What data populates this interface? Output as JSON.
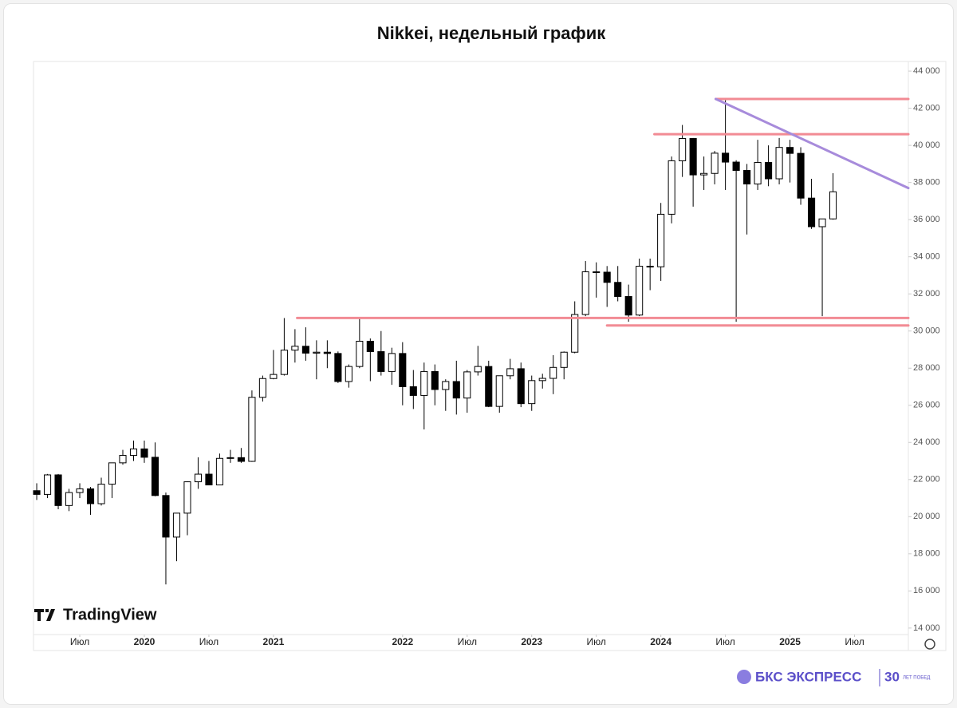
{
  "chart_data": {
    "type": "candlestick",
    "title": "Nikkei, недельный график",
    "watermark": "TradingView",
    "brand": "БКС ЭКСПРЕСС",
    "brand_badge": "30",
    "brand_badge_note": "ЛЕТ ПОБЕД",
    "up_color": "#ffffff",
    "down_color": "#000000",
    "wick_color": "#000000",
    "x": [
      0,
      1,
      2,
      3,
      4,
      5,
      6,
      7,
      8,
      9,
      10,
      11,
      12,
      13,
      14,
      15,
      16,
      17,
      18,
      19,
      20,
      21,
      22,
      23,
      24,
      25,
      26,
      27,
      28,
      29,
      30,
      31,
      32,
      33,
      34,
      35,
      36,
      37,
      38,
      39,
      40,
      41,
      42,
      43,
      44,
      45,
      46,
      47,
      48,
      49,
      50,
      51,
      52,
      53,
      54,
      55,
      56,
      57,
      58,
      59,
      60,
      61,
      62,
      63,
      64,
      65,
      66,
      67,
      68,
      69,
      70,
      71,
      72,
      73,
      74
    ],
    "open": [
      21400,
      21200,
      22250,
      20600,
      21300,
      21500,
      20700,
      21750,
      22900,
      23300,
      23650,
      23200,
      21140,
      18900,
      20190,
      21880,
      22290,
      21710,
      23140,
      23180,
      22980,
      26430,
      27440,
      27660,
      28970,
      29180,
      28810,
      28860,
      28790,
      27280,
      28090,
      29450,
      28890,
      27820,
      28790,
      27000,
      26530,
      27820,
      26850,
      27280,
      26390,
      27800,
      28090,
      25940,
      27590,
      27970,
      26090,
      27330,
      27450,
      28040,
      28860,
      30890,
      33190,
      33170,
      32620,
      31860,
      30860,
      33490,
      33460,
      36290,
      39170,
      40370,
      38410,
      38490,
      39580,
      39100,
      38650,
      37920,
      39080,
      38200,
      39890,
      39570,
      37160,
      35620,
      36040
    ],
    "high": [
      21800,
      22300,
      22300,
      21500,
      21800,
      21600,
      22100,
      22900,
      23600,
      24100,
      24100,
      24000,
      21300,
      20200,
      21900,
      23200,
      23000,
      23400,
      23600,
      23700,
      26800,
      27600,
      28980,
      30700,
      30100,
      30200,
      29500,
      29500,
      28900,
      28200,
      30670,
      29600,
      30000,
      29100,
      29400,
      27900,
      28300,
      28200,
      27400,
      28400,
      27900,
      29200,
      28400,
      27600,
      28500,
      28300,
      27600,
      27700,
      28700,
      28900,
      31600,
      33770,
      33700,
      33500,
      33500,
      32500,
      33900,
      33900,
      36900,
      39400,
      41100,
      40400,
      39400,
      39700,
      42430,
      39200,
      39000,
      40300,
      40000,
      40400,
      40300,
      39900,
      38200,
      36000,
      38500
    ],
    "low": [
      20900,
      21000,
      20400,
      20300,
      21000,
      20100,
      20600,
      21000,
      22800,
      23000,
      22900,
      21100,
      16350,
      17600,
      19000,
      21500,
      21700,
      21700,
      22900,
      22900,
      22950,
      26200,
      27400,
      27600,
      28300,
      28400,
      27400,
      28000,
      27200,
      26950,
      28000,
      27300,
      27600,
      27100,
      26000,
      25800,
      24700,
      26000,
      25700,
      25500,
      25600,
      27600,
      25900,
      25600,
      27400,
      25900,
      25700,
      26900,
      26600,
      27400,
      28800,
      30800,
      31800,
      31300,
      31600,
      30500,
      30800,
      32200,
      32700,
      35800,
      38300,
      36700,
      37600,
      37900,
      37600,
      30500,
      35200,
      37600,
      37800,
      37900,
      38000,
      36800,
      35500,
      30800,
      36000
    ],
    "close": [
      21200,
      22250,
      20600,
      21300,
      21500,
      20700,
      21750,
      22900,
      23300,
      23650,
      23200,
      21140,
      18900,
      20190,
      21880,
      22290,
      21710,
      23140,
      23180,
      22980,
      26430,
      27440,
      27660,
      28970,
      29180,
      28810,
      28860,
      28790,
      27280,
      28090,
      29450,
      28890,
      27820,
      28790,
      27000,
      26530,
      27820,
      26850,
      27280,
      26390,
      27800,
      28090,
      25940,
      27590,
      27970,
      26090,
      27330,
      27450,
      28040,
      28860,
      30890,
      33190,
      33170,
      32620,
      31860,
      30860,
      33490,
      33460,
      36290,
      39170,
      40370,
      38410,
      38490,
      39580,
      39100,
      38650,
      37920,
      39080,
      38200,
      39890,
      39570,
      37160,
      35620,
      36040,
      37500
    ],
    "xlim": [
      -0.3,
      81
    ],
    "xticks": [
      {
        "value": 4,
        "label": "Июл"
      },
      {
        "value": 10,
        "label": "2020"
      },
      {
        "value": 16,
        "label": "Июл"
      },
      {
        "value": 22,
        "label": "2021"
      },
      {
        "value": 34,
        "label": "2022"
      },
      {
        "value": 40,
        "label": "Июл"
      },
      {
        "value": 46,
        "label": "2023"
      },
      {
        "value": 52,
        "label": "Июл"
      },
      {
        "value": 58,
        "label": "2024"
      },
      {
        "value": 64,
        "label": "Июл"
      },
      {
        "value": 70,
        "label": "2025"
      },
      {
        "value": 76,
        "label": "Июл"
      }
    ],
    "ylim": [
      13650,
      44520
    ],
    "yticks": [
      {
        "value": 14000,
        "label": "14 000"
      },
      {
        "value": 16000,
        "label": "16 000"
      },
      {
        "value": 18000,
        "label": "18 000"
      },
      {
        "value": 20000,
        "label": "20 000"
      },
      {
        "value": 22000,
        "label": "22 000"
      },
      {
        "value": 24000,
        "label": "24 000"
      },
      {
        "value": 26000,
        "label": "26 000"
      },
      {
        "value": 28000,
        "label": "28 000"
      },
      {
        "value": 30000,
        "label": "30 000"
      },
      {
        "value": 32000,
        "label": "32 000"
      },
      {
        "value": 34000,
        "label": "34 000"
      },
      {
        "value": 36000,
        "label": "36 000"
      },
      {
        "value": 38000,
        "label": "38 000"
      },
      {
        "value": 40000,
        "label": "40 000"
      },
      {
        "value": 42000,
        "label": "42 000"
      },
      {
        "value": 44000,
        "label": "44 000"
      }
    ],
    "lines": [
      {
        "x": [
          63.1,
          81
        ],
        "y": [
          42500,
          42500
        ],
        "color": "#f28b94"
      },
      {
        "x": [
          57.4,
          81
        ],
        "y": [
          40600,
          40600
        ],
        "color": "#f28b94"
      },
      {
        "x": [
          24.2,
          81
        ],
        "y": [
          30700,
          30700
        ],
        "color": "#f28b94"
      },
      {
        "x": [
          53.0,
          81
        ],
        "y": [
          30300,
          30300
        ],
        "color": "#f28b94"
      },
      {
        "x": [
          63.1,
          81
        ],
        "y": [
          42500,
          37700
        ],
        "color": "#a78bdb"
      }
    ]
  }
}
